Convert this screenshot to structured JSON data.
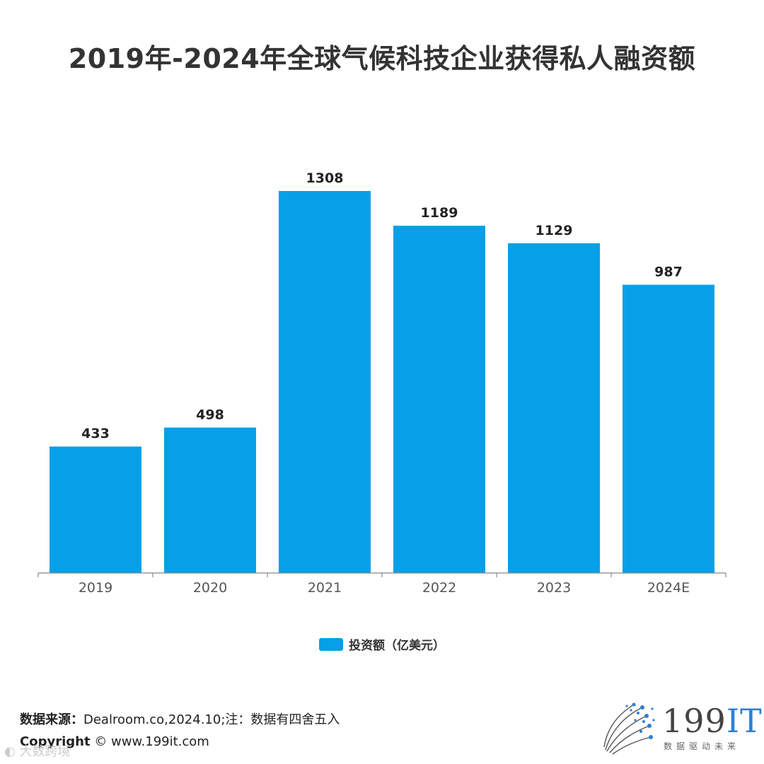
{
  "title": "2019年-2024年全球气候科技企业获得私人融资额",
  "colors": {
    "bar": "#05A0E8",
    "axis": "#888888",
    "text": "#333333"
  },
  "chart_data": {
    "type": "bar",
    "title": "2019年-2024年全球气候科技企业获得私人融资额",
    "categories": [
      "2019",
      "2020",
      "2021",
      "2022",
      "2023",
      "2024E"
    ],
    "series": [
      {
        "name": "投资额（亿美元）",
        "values": [
          433,
          498,
          1308,
          1189,
          1129,
          987
        ]
      }
    ],
    "xlabel": "",
    "ylabel": "",
    "ylim": [
      0,
      1308
    ],
    "grid": false,
    "legend": "bottom-center"
  },
  "legend": {
    "label": "投资额（亿美元）"
  },
  "footer": {
    "source_label": "数据来源：",
    "source_text": "Dealroom.co,2024.10;注：数据有四舍五入",
    "copyright_label": "Copyright",
    "copyright_text": "©  www.199it.com"
  },
  "brand": {
    "name_num": "199",
    "name_it": "IT",
    "tagline": "数据驱动未来",
    "icon": "dot-sphere-logo-icon"
  },
  "watermark": {
    "text": "大数跨境",
    "icon": "watermark-logo-icon"
  }
}
